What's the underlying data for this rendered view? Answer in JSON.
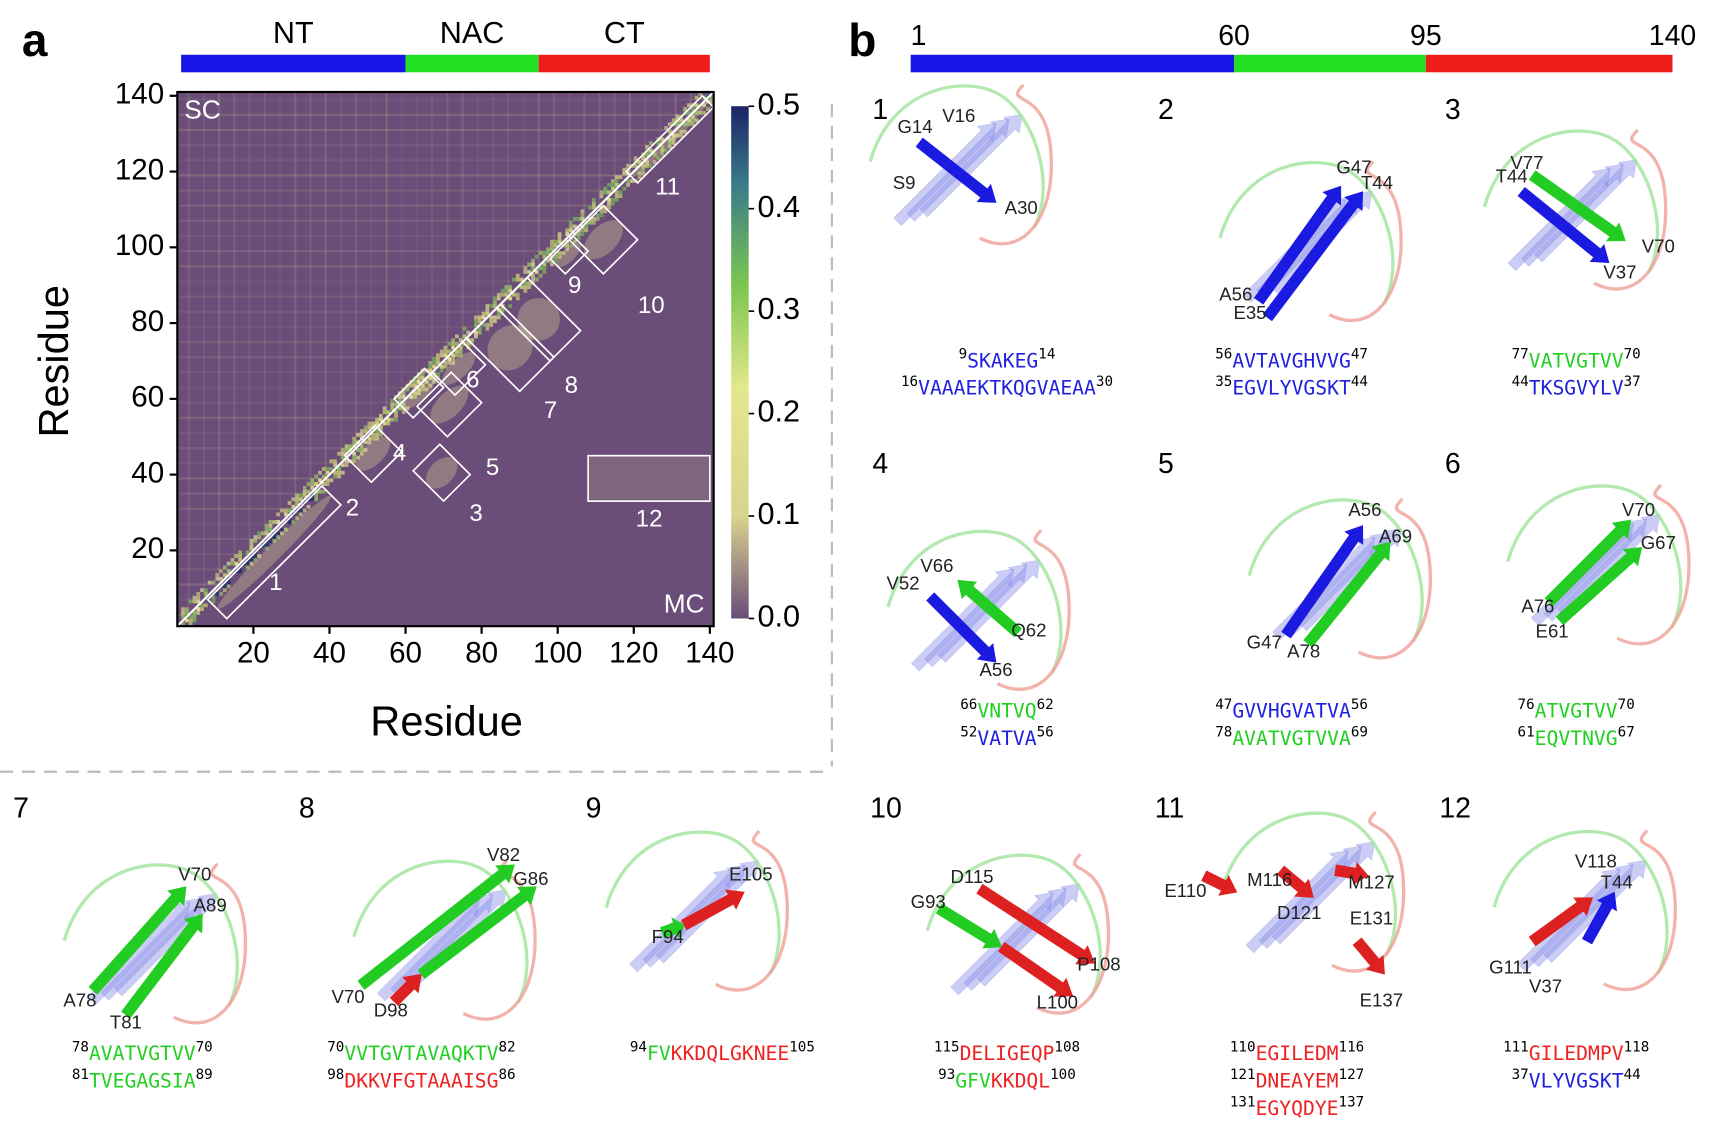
{
  "panel_a": {
    "label": "a",
    "domains": [
      "NT",
      "NAC",
      "CT"
    ],
    "domain_colors": [
      "#1515e6",
      "#22e022",
      "#ef1c1c"
    ],
    "heatmap": {
      "corner_labels": [
        "SC",
        "MC"
      ],
      "xlim": [
        0,
        141
      ],
      "ylim": [
        0,
        141
      ],
      "xticks": [
        20,
        40,
        60,
        80,
        100,
        120,
        140
      ],
      "yticks": [
        20,
        40,
        60,
        80,
        100,
        120,
        140
      ],
      "xlabel": "Residue",
      "ylabel": "Residue",
      "boxes": [
        "1",
        "2",
        "3",
        "4",
        "5",
        "6",
        "7",
        "8",
        "9",
        "10",
        "11",
        "12"
      ]
    },
    "colorbar": {
      "lim": [
        0,
        0.5
      ],
      "ticks": [
        {
          "value": 0,
          "label": "0.0"
        },
        0.1,
        0.2,
        0.3,
        0.4,
        0.5
      ]
    }
  },
  "panel_b": {
    "label": "b",
    "ruler": [
      1,
      60,
      95,
      140
    ],
    "structures": [
      {
        "label": "1",
        "residues": [
          "G14",
          "V16",
          "S9",
          "A30"
        ],
        "sequence": [
          {
            "start": 9,
            "segments": [
              {
                "text": "SKAKEG",
                "color": "#2020e0"
              }
            ],
            "end": 14
          },
          {
            "start": 16,
            "segments": [
              {
                "text": "VAAAEKTKQGVAEAA",
                "color": "#2020e0"
              }
            ],
            "end": 30
          }
        ]
      },
      {
        "label": "2",
        "residues": [
          "G47",
          "T44",
          "A56",
          "E35"
        ],
        "sequence": [
          {
            "start": 56,
            "segments": [
              {
                "text": "AVTAVGHVVG",
                "color": "#2020e0"
              }
            ],
            "end": 47
          },
          {
            "start": 35,
            "segments": [
              {
                "text": "EGVLYVGSKT",
                "color": "#2020e0"
              }
            ],
            "end": 44
          }
        ]
      },
      {
        "label": "3",
        "residues": [
          "V77",
          "T44",
          "V70",
          "V37"
        ],
        "sequence": [
          {
            "start": 77,
            "segments": [
              {
                "text": "VATVGTVV",
                "color": "#22d022"
              }
            ],
            "end": 70
          },
          {
            "start": 44,
            "segments": [
              {
                "text": "TKSGVYLV",
                "color": "#2020e0"
              }
            ],
            "end": 37
          }
        ]
      },
      {
        "label": "4",
        "residues": [
          "V66",
          "V52",
          "Q62",
          "A56"
        ],
        "sequence": [
          {
            "start": 66,
            "segments": [
              {
                "text": "VNTVQ",
                "color": "#22d022"
              }
            ],
            "end": 62
          },
          {
            "start": 52,
            "segments": [
              {
                "text": "VATVA",
                "color": "#2020e0"
              }
            ],
            "end": 56
          }
        ]
      },
      {
        "label": "5",
        "residues": [
          "A56",
          "A69",
          "G47",
          "A78"
        ],
        "sequence": [
          {
            "start": 47,
            "segments": [
              {
                "text": "GVVHGVATVA",
                "color": "#2020e0"
              }
            ],
            "end": 56
          },
          {
            "start": 78,
            "segments": [
              {
                "text": "AVATVGTVVA",
                "color": "#22d022"
              }
            ],
            "end": 69
          }
        ]
      },
      {
        "label": "6",
        "residues": [
          "V70",
          "G67",
          "A76",
          "E61"
        ],
        "sequence": [
          {
            "start": 76,
            "segments": [
              {
                "text": "ATVGTVV",
                "color": "#22d022"
              }
            ],
            "end": 70
          },
          {
            "start": 61,
            "segments": [
              {
                "text": "EQVTNVG",
                "color": "#22d022"
              }
            ],
            "end": 67
          }
        ]
      },
      {
        "label": "7",
        "residues": [
          "V70",
          "A89",
          "A78",
          "T81"
        ],
        "sequence": [
          {
            "start": 78,
            "segments": [
              {
                "text": "AVATVGTVV",
                "color": "#22d022"
              }
            ],
            "end": 70
          },
          {
            "start": 81,
            "segments": [
              {
                "text": "TVEGAGSIA",
                "color": "#22d022"
              }
            ],
            "end": 89
          }
        ]
      },
      {
        "label": "8",
        "residues": [
          "V82",
          "G86",
          "V70",
          "D98"
        ],
        "sequence": [
          {
            "start": 70,
            "segments": [
              {
                "text": "VVTGVTAVAQKTV",
                "color": "#22d022"
              }
            ],
            "end": 82
          },
          {
            "start": 98,
            "segments": [
              {
                "text": "DKKVFGTAAAISG",
                "color": "#ee2222"
              }
            ],
            "end": 86
          }
        ]
      },
      {
        "label": "9",
        "residues": [
          "E105",
          "F94"
        ],
        "sequence": [
          {
            "start": 94,
            "segments": [
              {
                "text": "FV",
                "color": "#22d022"
              },
              {
                "text": "KKDQLGKNEE",
                "color": "#ee2222"
              }
            ],
            "end": 105
          }
        ]
      },
      {
        "label": "10",
        "residues": [
          "D115",
          "G93",
          "P108",
          "L100"
        ],
        "sequence": [
          {
            "start": 115,
            "segments": [
              {
                "text": "DELIGEQP",
                "color": "#ee2222"
              }
            ],
            "end": 108
          },
          {
            "start": 93,
            "segments": [
              {
                "text": "GFV",
                "color": "#22d022"
              },
              {
                "text": "KKDQL",
                "color": "#ee2222"
              }
            ],
            "end": 100
          }
        ]
      },
      {
        "label": "11",
        "residues": [
          "E110",
          "M116",
          "M127",
          "D121",
          "E131",
          "E137"
        ],
        "sequence": [
          {
            "start": 110,
            "segments": [
              {
                "text": "EGILEDM",
                "color": "#ee2222"
              }
            ],
            "end": 116
          },
          {
            "start": 121,
            "segments": [
              {
                "text": "DNEAYEM",
                "color": "#ee2222"
              }
            ],
            "end": 127
          },
          {
            "start": 131,
            "segments": [
              {
                "text": "EGYQDYE",
                "color": "#ee2222"
              }
            ],
            "end": 137
          }
        ]
      },
      {
        "label": "12",
        "residues": [
          "V118",
          "T44",
          "G111",
          "V37"
        ],
        "sequence": [
          {
            "start": 111,
            "segments": [
              {
                "text": "GILEDMPV",
                "color": "#ee2222"
              }
            ],
            "end": 118
          },
          {
            "start": 37,
            "segments": [
              {
                "text": "VLYVGSKT",
                "color": "#2020e0"
              }
            ],
            "end": 44
          }
        ]
      }
    ]
  }
}
